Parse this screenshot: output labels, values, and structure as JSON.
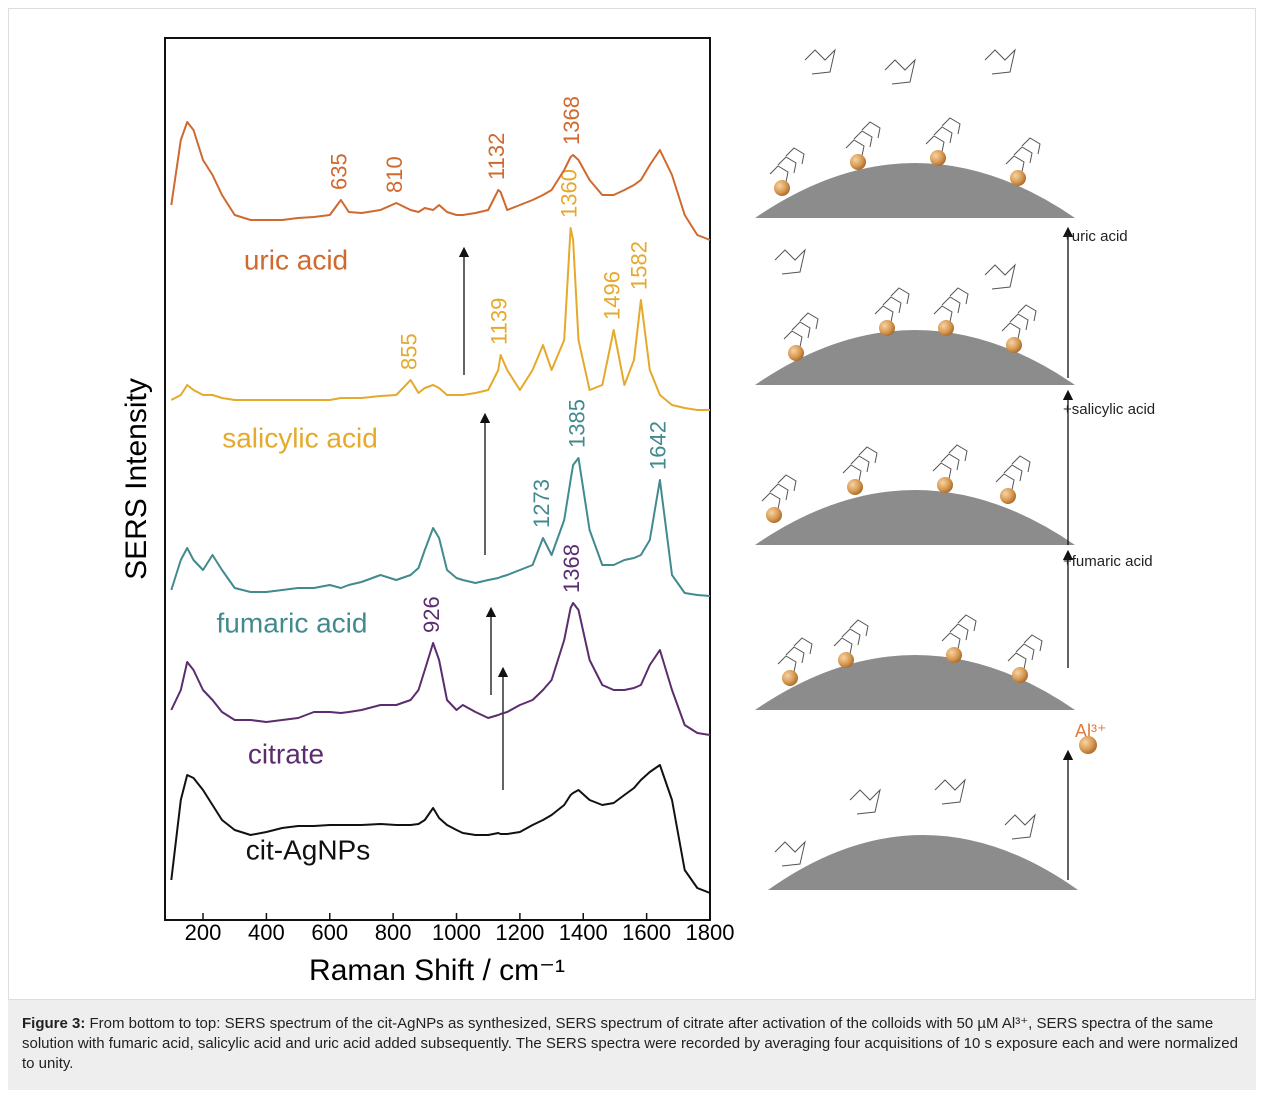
{
  "chart_data": {
    "type": "line",
    "xlabel": "Raman Shift / cm⁻¹",
    "ylabel": "SERS Intensity",
    "xlim": [
      80,
      1800
    ],
    "xticks": [
      200,
      400,
      600,
      800,
      1000,
      1200,
      1400,
      1600,
      1800
    ],
    "ylim": [
      0,
      882
    ],
    "x": [
      100,
      130,
      150,
      170,
      200,
      230,
      260,
      300,
      350,
      400,
      450,
      500,
      550,
      600,
      635,
      660,
      700,
      760,
      810,
      855,
      880,
      900,
      926,
      945,
      970,
      1000,
      1020,
      1060,
      1100,
      1132,
      1139,
      1160,
      1200,
      1240,
      1273,
      1300,
      1340,
      1360,
      1368,
      1385,
      1420,
      1460,
      1496,
      1530,
      1560,
      1582,
      1610,
      1642,
      1680,
      1720,
      1760,
      1800
    ],
    "series": [
      {
        "name": "cit-AgNPs",
        "color": "#111111",
        "peak_labels": [],
        "values": [
          40,
          120,
          145,
          142,
          130,
          115,
          100,
          90,
          85,
          88,
          92,
          94,
          94,
          95,
          95,
          95,
          95,
          96,
          95,
          95,
          96,
          100,
          112,
          102,
          95,
          90,
          87,
          85,
          85,
          87,
          86,
          86,
          88,
          95,
          100,
          105,
          115,
          125,
          127,
          130,
          120,
          115,
          117,
          125,
          132,
          140,
          148,
          155,
          120,
          50,
          32,
          27
        ]
      },
      {
        "name": "citrate",
        "color": "#5b2d6e",
        "peak_labels": [
          "926",
          "1368"
        ],
        "values": [
          210,
          230,
          258,
          250,
          230,
          220,
          208,
          200,
          200,
          198,
          200,
          202,
          208,
          208,
          207,
          208,
          210,
          215,
          215,
          220,
          230,
          250,
          277,
          260,
          220,
          210,
          215,
          208,
          202,
          205,
          206,
          208,
          215,
          220,
          230,
          240,
          280,
          312,
          317,
          310,
          260,
          235,
          230,
          230,
          232,
          235,
          255,
          270,
          230,
          195,
          187,
          185
        ]
      },
      {
        "name": "fumaric acid",
        "color": "#428a8e",
        "peak_labels": [
          "1273",
          "1385",
          "1642"
        ],
        "values": [
          330,
          360,
          372,
          360,
          350,
          365,
          350,
          332,
          328,
          328,
          330,
          332,
          332,
          335,
          332,
          335,
          338,
          345,
          340,
          345,
          352,
          370,
          392,
          382,
          350,
          342,
          340,
          337,
          340,
          342,
          343,
          345,
          350,
          355,
          382,
          365,
          400,
          440,
          455,
          462,
          390,
          355,
          355,
          360,
          362,
          365,
          380,
          440,
          345,
          327,
          325,
          324
        ]
      },
      {
        "name": "salicylic acid",
        "color": "#e6a92c",
        "peak_labels": [
          "855",
          "1139",
          "1360",
          "1496",
          "1582"
        ],
        "values": [
          520,
          525,
          535,
          530,
          525,
          525,
          522,
          520,
          520,
          520,
          520,
          520,
          520,
          520,
          522,
          522,
          522,
          524,
          525,
          540,
          527,
          532,
          535,
          532,
          525,
          525,
          525,
          527,
          530,
          550,
          565,
          550,
          530,
          550,
          575,
          550,
          580,
          692,
          680,
          580,
          530,
          535,
          590,
          535,
          560,
          620,
          550,
          525,
          515,
          512,
          510,
          510
        ]
      },
      {
        "name": "uric acid",
        "color": "#d0692e",
        "peak_labels": [
          "635",
          "810",
          "1132",
          "1368"
        ],
        "values": [
          715,
          780,
          798,
          790,
          760,
          745,
          725,
          705,
          700,
          700,
          700,
          702,
          703,
          705,
          720,
          708,
          707,
          710,
          717,
          710,
          708,
          712,
          710,
          715,
          708,
          705,
          705,
          707,
          710,
          730,
          728,
          710,
          715,
          720,
          725,
          730,
          750,
          763,
          765,
          760,
          740,
          725,
          725,
          730,
          735,
          740,
          755,
          770,
          745,
          705,
          685,
          680
        ]
      }
    ]
  },
  "diagram": {
    "steps": [
      "+uric acid",
      "+salicylic acid",
      "+fumaric acid",
      "Al³⁺"
    ]
  },
  "caption": {
    "label": "Figure 3:",
    "text": " From bottom to top: SERS spectrum of the cit-AgNPs as synthesized, SERS spectrum of citrate after activation of the colloids with 50 µM Al³⁺, SERS spectra of the same solution with fumaric acid, salicylic acid and uric acid added subsequently. The SERS spectra were recorded by averaging four acquisitions of 10 s exposure each and were normalized to unity."
  }
}
